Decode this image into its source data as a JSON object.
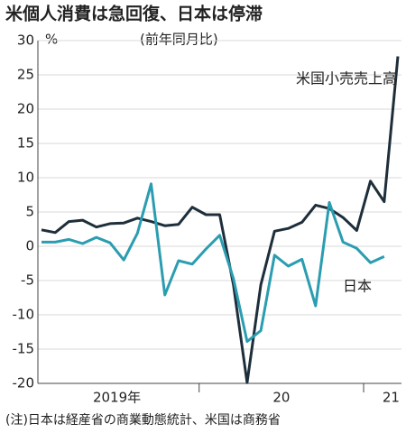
{
  "chart_data": {
    "type": "line",
    "title": "米個人消費は急回復、日本は停滞",
    "subtitle": "(前年同月比)",
    "y_unit": "%",
    "note": "(注)日本は経産省の商業動態統計、米国は商務省",
    "categories": [
      null,
      null,
      null,
      null,
      null,
      "2019年",
      null,
      null,
      null,
      null,
      null,
      null,
      null,
      null,
      null,
      null,
      null,
      "20",
      null,
      null,
      null,
      null,
      null,
      null,
      null,
      "21",
      null
    ],
    "series": [
      {
        "name": "米国小売売上高",
        "color": "#1e2f3b",
        "values": [
          2.4,
          2.0,
          3.6,
          3.8,
          2.8,
          3.3,
          3.4,
          4.1,
          3.6,
          3.0,
          3.2,
          5.7,
          4.6,
          4.6,
          -5.6,
          -19.9,
          -5.6,
          2.2,
          2.6,
          3.5,
          6.0,
          5.5,
          4.2,
          2.3,
          9.5,
          6.5,
          27.7
        ]
      },
      {
        "name": "日本",
        "color": "#2b9db0",
        "values": [
          0.6,
          0.6,
          1.0,
          0.4,
          1.3,
          0.5,
          -2.0,
          1.9,
          9.1,
          -7.1,
          -2.1,
          -2.6,
          -0.4,
          1.6,
          -4.7,
          -13.9,
          -12.3,
          -1.3,
          -2.9,
          -1.9,
          -8.7,
          6.4,
          0.6,
          -0.3,
          -2.4,
          -1.5,
          null
        ]
      }
    ],
    "ylim": [
      -20,
      30
    ],
    "yticks": [
      -20,
      -15,
      -10,
      -5,
      0,
      5,
      10,
      15,
      20,
      25,
      30
    ],
    "grid": true
  }
}
